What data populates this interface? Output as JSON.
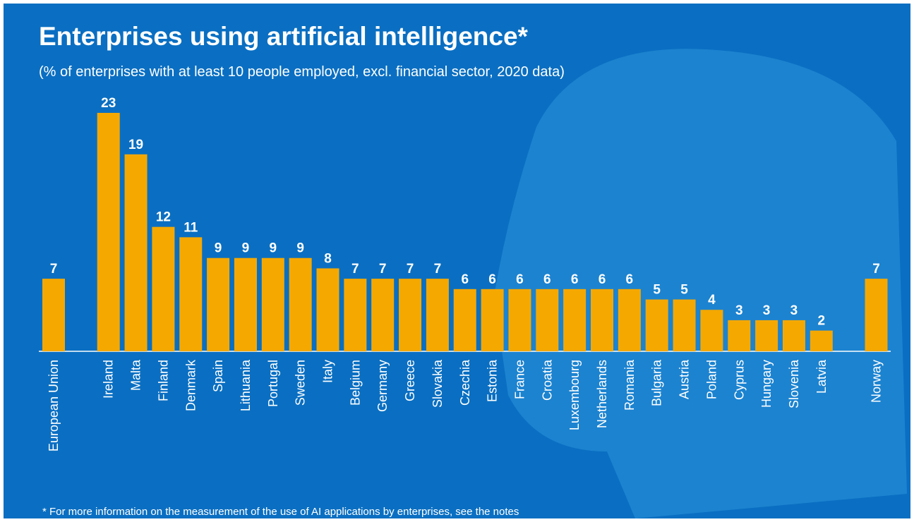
{
  "chart_data": {
    "type": "bar",
    "title": "Enterprises using artificial intelligence*",
    "subtitle": "(% of enterprises with at least 10 people employed, excl. financial sector, 2020 data)",
    "footnote": "* For more information on the measurement of the use of AI applications by enterprises, see the notes",
    "categories": [
      "European Union",
      "Ireland",
      "Malta",
      "Finland",
      "Denmark",
      "Spain",
      "Lithuania",
      "Portugal",
      "Sweden",
      "Italy",
      "Belgium",
      "Germany",
      "Greece",
      "Slovakia",
      "Czechia",
      "Estonia",
      "France",
      "Croatia",
      "Luxembourg",
      "Netherlands",
      "Romania",
      "Bulgaria",
      "Austria",
      "Poland",
      "Cyprus",
      "Hungary",
      "Slovenia",
      "Latvia",
      "Norway"
    ],
    "values": [
      7,
      23,
      19,
      12,
      11,
      9,
      9,
      9,
      9,
      8,
      7,
      7,
      7,
      7,
      6,
      6,
      6,
      6,
      6,
      6,
      6,
      5,
      5,
      4,
      3,
      3,
      3,
      2,
      7
    ],
    "color": "#f5a800"
  }
}
